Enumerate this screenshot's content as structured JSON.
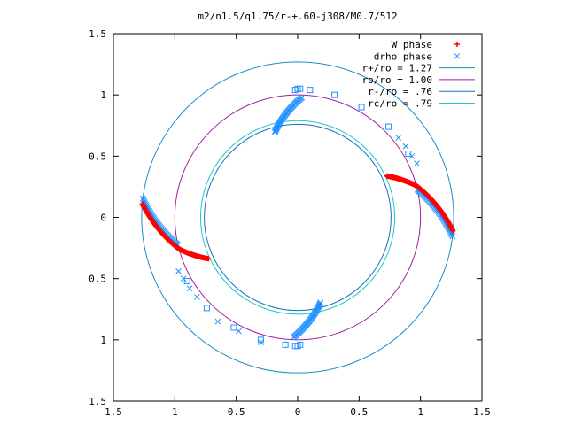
{
  "chart_data": {
    "type": "scatter",
    "title": "m2/n1.5/q1.75/r-+.60-j308/M0.7/512",
    "xlabel": "",
    "ylabel": "",
    "xlim": [
      -1.5,
      1.5
    ],
    "ylim": [
      -1.5,
      1.5
    ],
    "x_ticks": [
      -1.5,
      -1,
      -0.5,
      0,
      0.5,
      1,
      1.5
    ],
    "y_ticks": [
      -1.5,
      -1,
      -0.5,
      0,
      0.5,
      1,
      1.5
    ],
    "x_tick_labels": [
      "1.5",
      "1",
      "0.5",
      "0",
      "0.5",
      "1",
      "1.5"
    ],
    "y_tick_labels": [
      "1.5",
      "1",
      "0.5",
      "0",
      "0.5",
      "1",
      "1.5"
    ],
    "grid": false,
    "legend_position": "top-right",
    "legend": [
      {
        "label": "W phase",
        "color": "#ff0000",
        "marker": "plus"
      },
      {
        "label": "drho phase",
        "color": "#1e90ff",
        "marker": "cross"
      },
      {
        "label": "r+/ro = 1.27",
        "color": "#1a8cc8",
        "marker": "line"
      },
      {
        "label": "ro/ro = 1.00",
        "color": "#a020a0",
        "marker": "line"
      },
      {
        "label": "r-/ro = .76",
        "color": "#1a6fc0",
        "marker": "line"
      },
      {
        "label": "rc/ro = .79",
        "color": "#20c8c8",
        "marker": "line"
      }
    ],
    "circles": [
      {
        "r": 1.27,
        "color": "#1a8cc8"
      },
      {
        "r": 1.0,
        "color": "#a020a0"
      },
      {
        "r": 0.76,
        "color": "#1a6fc0"
      },
      {
        "r": 0.79,
        "color": "#20c8c8"
      }
    ],
    "w_phase_arms": [
      {
        "theta_start": 175,
        "theta_end": 195,
        "r_start": 1.27,
        "r_end": 1.0,
        "twist": 22,
        "n": 60
      },
      {
        "theta_start": 195,
        "theta_end": 205,
        "r_start": 1.0,
        "r_end": 0.8,
        "twist": 70,
        "n": 50
      },
      {
        "theta_start": -5,
        "theta_end": 15,
        "r_start": 1.27,
        "r_end": 1.0,
        "twist": 22,
        "n": 60
      },
      {
        "theta_start": 15,
        "theta_end": 25,
        "r_start": 1.0,
        "r_end": 0.8,
        "twist": 70,
        "n": 50
      }
    ],
    "drho_markers_dense": [
      {
        "r_start": 1.27,
        "r_end": 1.0,
        "theta_start": 173,
        "theta_end": 193,
        "n": 45
      },
      {
        "r_start": 1.27,
        "r_end": 1.0,
        "theta_start": -7,
        "theta_end": 13,
        "n": 45
      },
      {
        "r_start": 0.72,
        "r_end": 0.98,
        "theta_start": 105,
        "theta_end": 88,
        "n": 45
      },
      {
        "r_start": 0.72,
        "r_end": 0.98,
        "theta_start": -75,
        "theta_end": -92,
        "n": 45
      }
    ],
    "drho_square_points": [
      [
        0.1,
        1.04
      ],
      [
        0.3,
        1.0
      ],
      [
        0.52,
        0.9
      ],
      [
        0.74,
        0.74
      ],
      [
        0.9,
        0.52
      ],
      [
        -0.1,
        -1.04
      ],
      [
        -0.3,
        -1.0
      ],
      [
        -0.52,
        -0.9
      ],
      [
        -0.74,
        -0.74
      ],
      [
        -0.9,
        -0.52
      ],
      [
        0.02,
        1.05
      ],
      [
        0.0,
        1.05
      ],
      [
        -0.02,
        1.04
      ],
      [
        -0.02,
        -1.05
      ],
      [
        0.0,
        -1.05
      ],
      [
        0.02,
        -1.04
      ]
    ],
    "drho_cross_points": [
      [
        0.82,
        0.65
      ],
      [
        0.88,
        0.58
      ],
      [
        -0.82,
        -0.65
      ],
      [
        -0.88,
        -0.58
      ],
      [
        -0.65,
        -0.85
      ],
      [
        -0.48,
        -0.93
      ],
      [
        -0.3,
        -1.02
      ],
      [
        0.93,
        0.5
      ],
      [
        0.97,
        0.44
      ],
      [
        -0.93,
        -0.5
      ],
      [
        -0.97,
        -0.44
      ]
    ]
  }
}
